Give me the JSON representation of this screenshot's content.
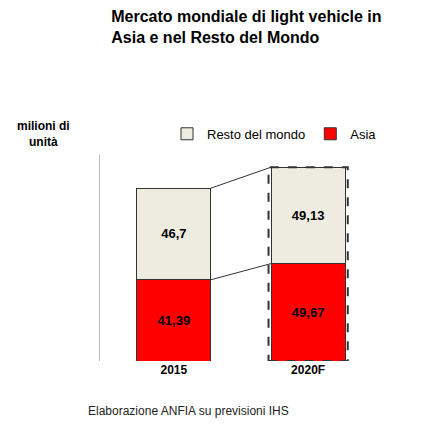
{
  "chart_data": {
    "type": "bar",
    "title": "Mercato mondiale di light vehicle in Asia e nel Resto del Mondo",
    "ylabel": "milioni di unità",
    "annotations": [
      "Elaborazione ANFIA su previsioni IHS"
    ],
    "categories": [
      "2015",
      "2020F"
    ],
    "series": [
      {
        "name": "Asia",
        "color": "#ff0000",
        "values": [
          41.39,
          49.67
        ],
        "value_labels": [
          "41,39",
          "49,67"
        ]
      },
      {
        "name": "Resto del mondo",
        "color": "#eeece1",
        "values": [
          46.7,
          49.13
        ],
        "value_labels": [
          "46,7",
          "49,13"
        ]
      }
    ],
    "stacked": true,
    "data_labels": true,
    "legend": "top",
    "grid": false,
    "tick_labels": "x",
    "ylim": [
      0,
      105
    ]
  }
}
